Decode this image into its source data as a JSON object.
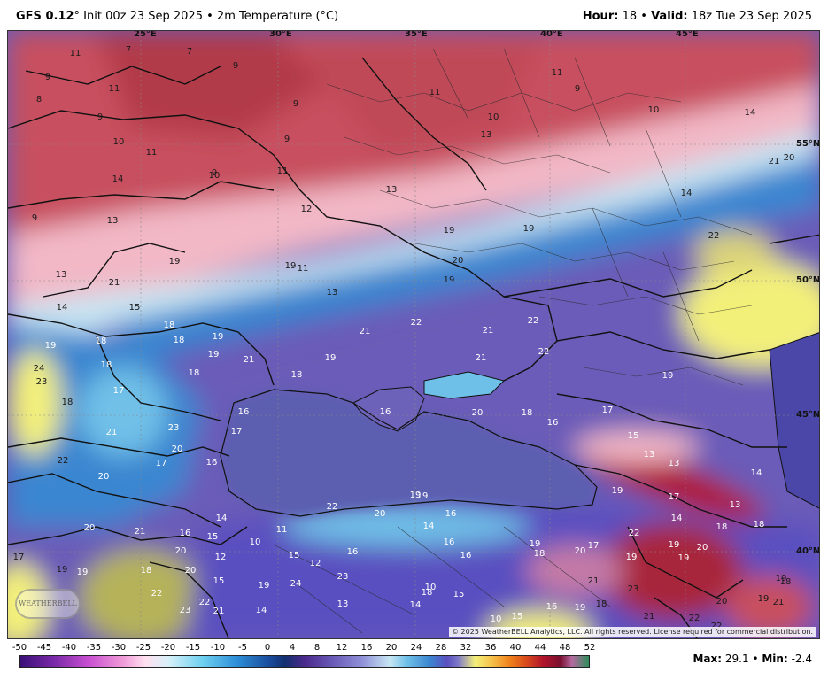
{
  "header": {
    "model": "GFS 0.12",
    "degree": "°",
    "init_text": "Init 00z 23 Sep 2025",
    "separator": "•",
    "field": "2m Temperature (°C)",
    "hour_label": "Hour:",
    "hour_value": "18",
    "valid_label": "Valid:",
    "valid_value": "18z Tue 23 Sep 2025"
  },
  "map": {
    "longitude_labels": [
      "25°E",
      "30°E",
      "35°E",
      "40°E",
      "45°E"
    ],
    "latitude_labels": [
      "55°N",
      "50°N",
      "45°N",
      "40°N"
    ],
    "temperature_labels": [
      "11",
      "7",
      "7",
      "9",
      "9",
      "11",
      "8",
      "9",
      "11",
      "11",
      "9",
      "9",
      "10",
      "11",
      "9",
      "9",
      "10",
      "11",
      "13",
      "10",
      "10",
      "14",
      "14",
      "9",
      "13",
      "13",
      "12",
      "14",
      "21",
      "20",
      "19",
      "19",
      "20",
      "22",
      "19",
      "13",
      "21",
      "19",
      "19",
      "11",
      "13",
      "14",
      "15",
      "18",
      "18",
      "18",
      "19",
      "19",
      "18",
      "19",
      "21",
      "21",
      "22",
      "21",
      "22",
      "22",
      "21",
      "18",
      "19",
      "24",
      "23",
      "17",
      "18",
      "16",
      "17",
      "19",
      "18",
      "21",
      "23",
      "16",
      "20",
      "18",
      "16",
      "20",
      "22",
      "17",
      "17",
      "20",
      "16",
      "15",
      "13",
      "13",
      "19",
      "22",
      "20",
      "19",
      "16",
      "14",
      "19",
      "17",
      "13",
      "14",
      "14",
      "18",
      "18",
      "16",
      "16",
      "19",
      "17",
      "17",
      "19",
      "21",
      "20",
      "16",
      "15",
      "14",
      "11",
      "10",
      "12",
      "15",
      "12",
      "16",
      "20",
      "22",
      "18",
      "20",
      "22",
      "19",
      "19",
      "20",
      "19",
      "19",
      "18",
      "19",
      "18",
      "20",
      "22",
      "15",
      "19",
      "24",
      "23",
      "23",
      "21",
      "14",
      "13",
      "14",
      "10",
      "15",
      "18",
      "10",
      "15",
      "17",
      "16",
      "19",
      "18",
      "21",
      "23",
      "21",
      "22",
      "22",
      "21",
      "20",
      "19"
    ],
    "copyright": "© 2025 WeatherBELL Analytics, LLC. All rights reserved. License required for commercial distribution.",
    "logo_text": "WEATHERBELL"
  },
  "legend": {
    "ticks": [
      "-50",
      "-45",
      "-40",
      "-35",
      "-30",
      "-25",
      "-20",
      "-15",
      "-10",
      "-5",
      "0",
      "4",
      "8",
      "12",
      "16",
      "20",
      "24",
      "28",
      "32",
      "36",
      "40",
      "44",
      "48",
      "52"
    ]
  },
  "stats": {
    "max_label": "Max:",
    "max_value": "29.1",
    "separator": "•",
    "min_label": "Min:",
    "min_value": "-2.4"
  },
  "colors": {
    "warm_red": "#c8505e",
    "pink": "#f2b8c6",
    "light_cyan": "#c7e6f3",
    "blue": "#3b86d0",
    "purple": "#6a5bb8",
    "yellow": "#f3f07a",
    "dark_red": "#8b1a2a",
    "sea": "#5b5fb0"
  }
}
